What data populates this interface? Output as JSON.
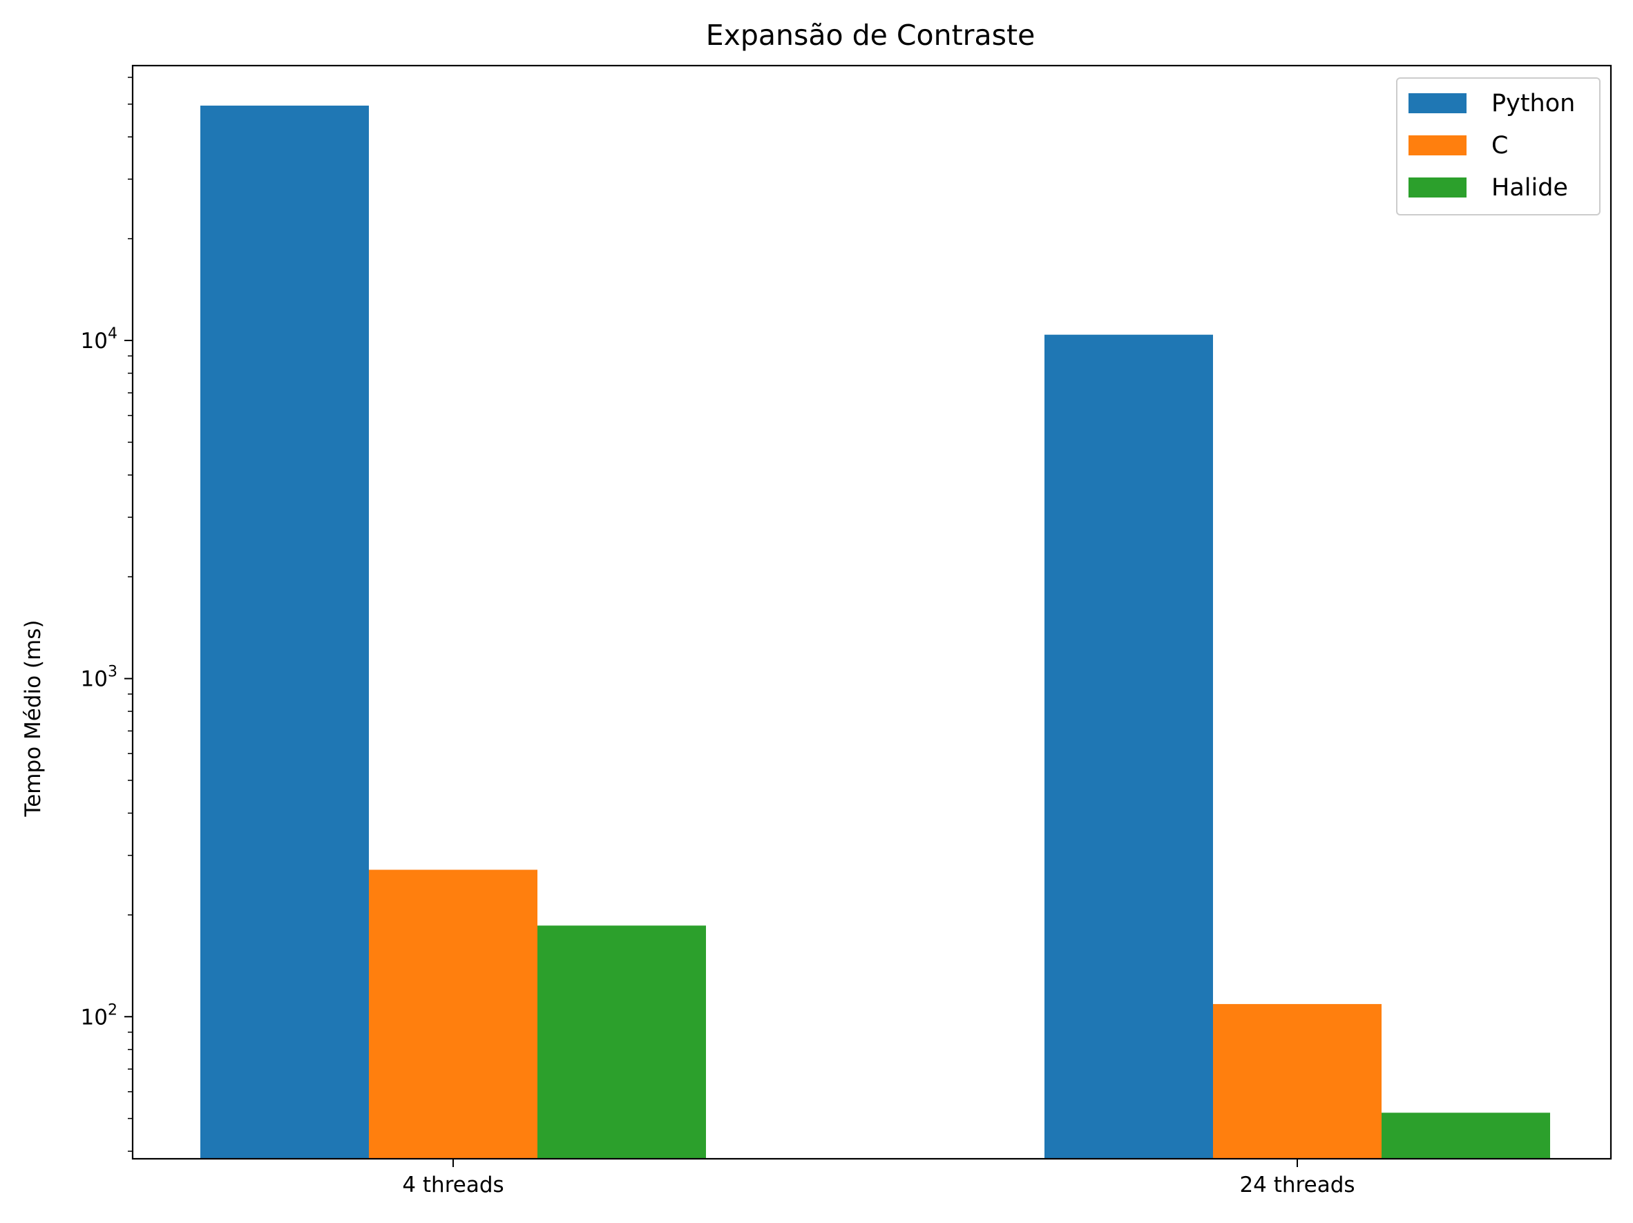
{
  "chart_data": {
    "type": "bar",
    "title": "Expansão de Contraste",
    "xlabel": "",
    "ylabel": "Tempo Médio (ms)",
    "yscale": "log",
    "ylim": [
      38,
      65000
    ],
    "categories": [
      "4 threads",
      "24 threads"
    ],
    "series": [
      {
        "name": "Python",
        "color": "#1f77b4",
        "values": [
          49500,
          10400
        ]
      },
      {
        "name": "C",
        "color": "#ff7f0e",
        "values": [
          272,
          109
        ]
      },
      {
        "name": "Halide",
        "color": "#2ca02c",
        "values": [
          186,
          52
        ]
      }
    ],
    "yticks": [
      {
        "value": 100,
        "base": "10",
        "exp": "2"
      },
      {
        "value": 1000,
        "base": "10",
        "exp": "3"
      },
      {
        "value": 10000,
        "base": "10",
        "exp": "4"
      }
    ],
    "legend": {
      "position": "top-right"
    },
    "grid": false
  }
}
